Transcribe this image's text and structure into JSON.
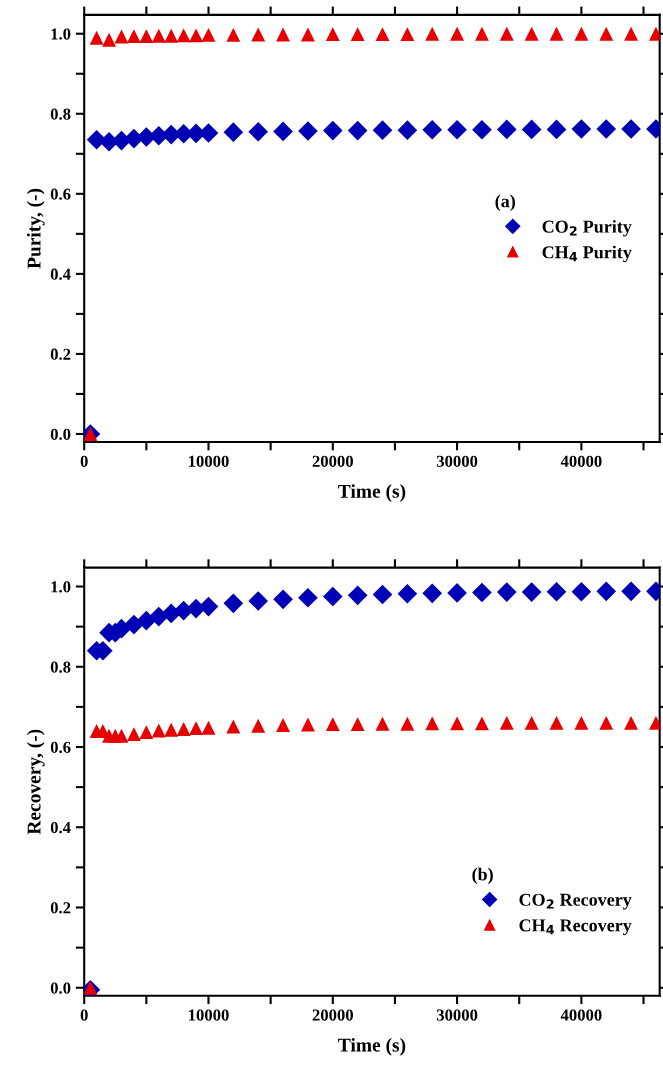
{
  "chart_data": [
    {
      "type": "scatter",
      "xlabel": "Time (s)",
      "ylabel": "Purity, (-)",
      "legend_title": "(a)",
      "legend": "center right",
      "xlim": [
        0,
        46300
      ],
      "ylim": [
        -0.02,
        1.047
      ],
      "xticks": [
        0,
        {
          "value": 5000,
          "label": null
        },
        10000,
        {
          "value": 15000,
          "label": null
        },
        20000,
        {
          "value": 25000,
          "label": null
        },
        30000,
        {
          "value": 35000,
          "label": null
        },
        40000,
        {
          "value": 45000,
          "label": null
        }
      ],
      "yticks": [
        {
          "value": 0,
          "label": "0.0"
        },
        {
          "value": 0.1,
          "label": null
        },
        0.2,
        {
          "value": 0.3,
          "label": null
        },
        0.4,
        {
          "value": 0.5,
          "label": null
        },
        0.6,
        {
          "value": 0.7,
          "label": null
        },
        0.8,
        {
          "value": 0.9,
          "label": null
        },
        {
          "value": 1.0,
          "label": "1.0"
        }
      ],
      "series": [
        {
          "name": "CO$_{2}$ Purity",
          "color": "#0000b4",
          "marker": "diamond",
          "x": [
            500,
            1000,
            2000,
            3000,
            4000,
            5000,
            6000,
            7000,
            8000,
            9000,
            10000,
            12000,
            14000,
            16000,
            18000,
            20000,
            22000,
            24000,
            26000,
            28000,
            30000,
            32000,
            34000,
            36000,
            38000,
            40000,
            42000,
            44000,
            46000
          ],
          "values": [
            0,
            0.735,
            0.73,
            0.733,
            0.738,
            0.742,
            0.745,
            0.748,
            0.75,
            0.751,
            0.752,
            0.754,
            0.755,
            0.756,
            0.757,
            0.758,
            0.758,
            0.759,
            0.759,
            0.76,
            0.76,
            0.76,
            0.761,
            0.761,
            0.761,
            0.762,
            0.762,
            0.762,
            0.762
          ]
        },
        {
          "name": "CH$_{4}$ Purity",
          "color": "#e60000",
          "marker": "triangle",
          "x": [
            500,
            1000,
            2000,
            3000,
            4000,
            5000,
            6000,
            7000,
            8000,
            9000,
            10000,
            12000,
            14000,
            16000,
            18000,
            20000,
            22000,
            24000,
            26000,
            28000,
            30000,
            32000,
            34000,
            36000,
            38000,
            40000,
            42000,
            44000,
            46000
          ],
          "values": [
            0,
            0.99,
            0.985,
            0.993,
            0.994,
            0.994,
            0.995,
            0.995,
            0.996,
            0.996,
            0.997,
            0.997,
            0.998,
            0.998,
            0.998,
            0.999,
            0.999,
            0.999,
            0.999,
            1.0,
            1.0,
            1.0,
            1.0,
            1.0,
            1.0,
            1.0,
            1.0,
            1.0,
            1.0
          ]
        }
      ]
    },
    {
      "type": "scatter",
      "xlabel": "Time (s)",
      "ylabel": "Recovery, (-)",
      "legend_title": "(b)",
      "legend": "lower right",
      "xlim": [
        0,
        46300
      ],
      "ylim": [
        -0.02,
        1.047
      ],
      "xticks": [
        0,
        {
          "value": 5000,
          "label": null
        },
        10000,
        {
          "value": 15000,
          "label": null
        },
        20000,
        {
          "value": 25000,
          "label": null
        },
        30000,
        {
          "value": 35000,
          "label": null
        },
        40000,
        {
          "value": 45000,
          "label": null
        }
      ],
      "yticks": [
        {
          "value": 0,
          "label": "0.0"
        },
        {
          "value": 0.1,
          "label": null
        },
        0.2,
        {
          "value": 0.3,
          "label": null
        },
        0.4,
        {
          "value": 0.5,
          "label": null
        },
        0.6,
        {
          "value": 0.7,
          "label": null
        },
        0.8,
        {
          "value": 0.9,
          "label": null
        },
        {
          "value": 1.0,
          "label": "1.0"
        }
      ],
      "series": [
        {
          "name": "CO$_{2}$ Recovery",
          "color": "#0000b4",
          "marker": "diamond",
          "x": [
            500,
            1000,
            1500,
            2000,
            2500,
            3000,
            4000,
            5000,
            6000,
            7000,
            8000,
            9000,
            10000,
            12000,
            14000,
            16000,
            18000,
            20000,
            22000,
            24000,
            26000,
            28000,
            30000,
            32000,
            34000,
            36000,
            38000,
            40000,
            42000,
            44000,
            46000
          ],
          "values": [
            -0.005,
            0.84,
            0.84,
            0.885,
            0.885,
            0.895,
            0.905,
            0.915,
            0.925,
            0.933,
            0.94,
            0.945,
            0.95,
            0.958,
            0.964,
            0.968,
            0.972,
            0.975,
            0.978,
            0.98,
            0.982,
            0.983,
            0.984,
            0.985,
            0.986,
            0.986,
            0.987,
            0.987,
            0.988,
            0.988,
            0.988
          ]
        },
        {
          "name": "CH$_{4}$ Recovery",
          "color": "#e60000",
          "marker": "triangle",
          "x": [
            500,
            1000,
            1500,
            2000,
            2500,
            3000,
            4000,
            5000,
            6000,
            7000,
            8000,
            9000,
            10000,
            12000,
            14000,
            16000,
            18000,
            20000,
            22000,
            24000,
            26000,
            28000,
            30000,
            32000,
            34000,
            36000,
            38000,
            40000,
            42000,
            44000,
            46000
          ],
          "values": [
            0,
            0.64,
            0.64,
            0.628,
            0.628,
            0.628,
            0.632,
            0.637,
            0.641,
            0.643,
            0.645,
            0.647,
            0.648,
            0.651,
            0.653,
            0.655,
            0.656,
            0.657,
            0.657,
            0.658,
            0.658,
            0.659,
            0.659,
            0.659,
            0.66,
            0.66,
            0.66,
            0.66,
            0.66,
            0.66,
            0.66
          ]
        }
      ]
    }
  ]
}
